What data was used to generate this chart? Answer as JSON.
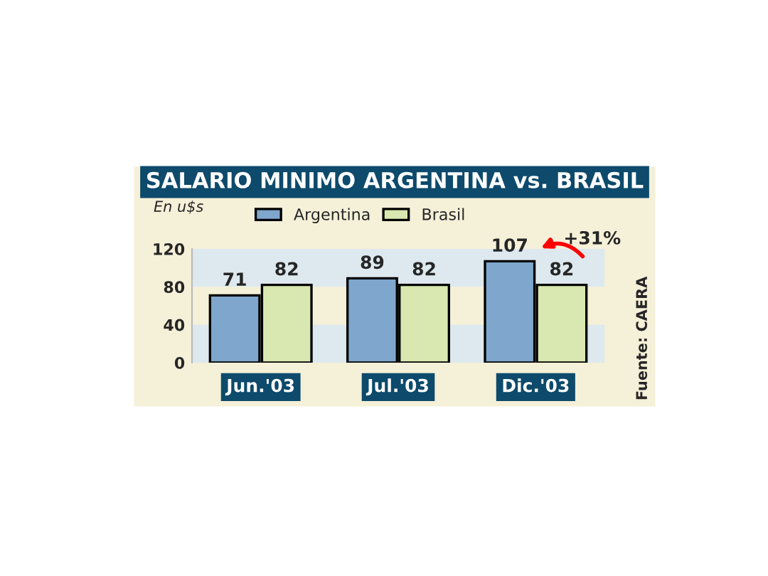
{
  "chart_data": {
    "type": "bar",
    "title": "SALARIO MINIMO ARGENTINA vs. BRASIL",
    "ylabel": "En u$s",
    "categories": [
      "Jun.'03",
      "Jul.'03",
      "Dic.'03"
    ],
    "series": [
      {
        "name": "Argentina",
        "color": "#7fa6cc",
        "values": [
          71,
          89,
          107
        ]
      },
      {
        "name": "Brasil",
        "color": "#d8e8b0",
        "values": [
          82,
          82,
          82
        ]
      }
    ],
    "ylim": [
      0,
      120
    ],
    "yticks": [
      0,
      40,
      80,
      120
    ],
    "data_labels": true,
    "legend": "top left",
    "grid": false,
    "bands": [
      {
        "axis": "y",
        "from": 0,
        "to": 40,
        "color": "#dde9ee"
      },
      {
        "axis": "y",
        "from": 80,
        "to": 120,
        "color": "#dde9ee"
      }
    ],
    "annotations": [
      {
        "text": "+31%",
        "x": "Dic.'03",
        "y": 107
      },
      "Fuente: CAERA"
    ]
  }
}
